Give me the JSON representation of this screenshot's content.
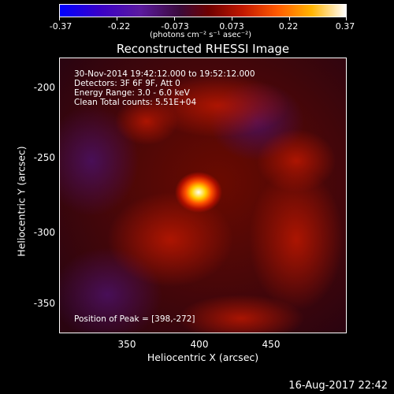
{
  "colorbar": {
    "tick_labels": [
      "-0.37",
      "-0.22",
      "-0.073",
      "0.073",
      "0.22",
      "0.37"
    ],
    "unit": "(photons cm⁻² s⁻¹ asec⁻²)"
  },
  "title": "Reconstructed RHESSI Image",
  "info": {
    "time": "30-Nov-2014 19:42:12.000 to 19:52:12.000",
    "detectors": "Detectors: 3F 6F 9F, Att 0",
    "energy": "Energy Range: 3.0 - 6.0 keV",
    "clean": "Clean    Total counts: 5.51E+04",
    "peak": "Position of Peak = [398,-272]"
  },
  "axes": {
    "xlabel": "Heliocentric X (arcsec)",
    "ylabel": "Heliocentric Y (arcsec)",
    "xticks": [
      "350",
      "400",
      "450"
    ],
    "yticks": [
      "-200",
      "-250",
      "-300",
      "-350"
    ]
  },
  "footer_date": "16-Aug-2017 22:42"
}
